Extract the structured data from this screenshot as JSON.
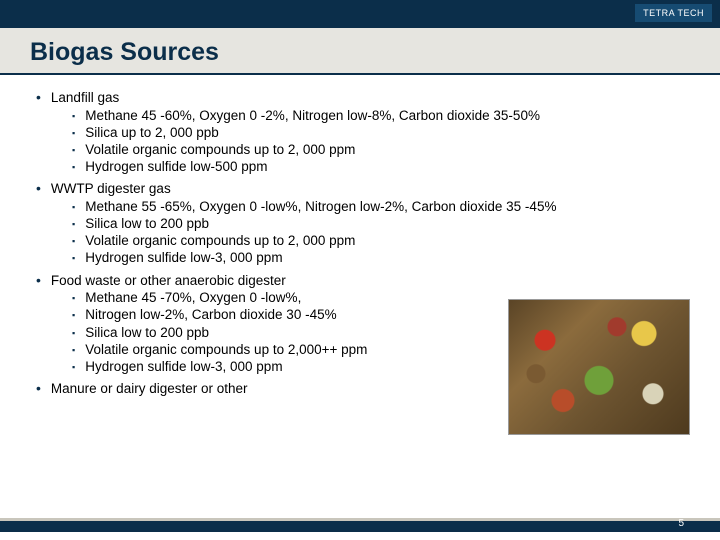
{
  "header": {
    "logo_text": "TETRA TECH"
  },
  "title": "Biogas Sources",
  "sections": [
    {
      "heading": "Landfill gas",
      "items": [
        "Methane 45 -60%, Oxygen 0 -2%, Nitrogen low-8%, Carbon dioxide 35-50%",
        "Silica up to 2, 000 ppb",
        "Volatile organic compounds up to 2, 000 ppm",
        "Hydrogen sulfide low-500 ppm"
      ]
    },
    {
      "heading": "WWTP digester gas",
      "items": [
        "Methane 55 -65%, Oxygen 0 -low%, Nitrogen low-2%, Carbon dioxide 35 -45%",
        "Silica low to 200 ppb",
        "Volatile organic compounds up to 2, 000 ppm",
        "Hydrogen sulfide low-3, 000 ppm"
      ]
    },
    {
      "heading": "Food waste or other anaerobic digester",
      "items": [
        "Methane 45 -70%, Oxygen 0 -low%,",
        "Nitrogen low-2%, Carbon dioxide 30 -45%",
        "Silica low to 200 ppb",
        "Volatile organic compounds up to 2,000++ ppm",
        "Hydrogen sulfide low-3, 000 ppm"
      ]
    },
    {
      "heading": "Manure or dairy digester or other",
      "items": []
    }
  ],
  "page_number": "5",
  "colors": {
    "brand_dark": "#0b2e4a",
    "band_bg": "#e6e5e0",
    "text": "#000000",
    "white": "#ffffff"
  }
}
